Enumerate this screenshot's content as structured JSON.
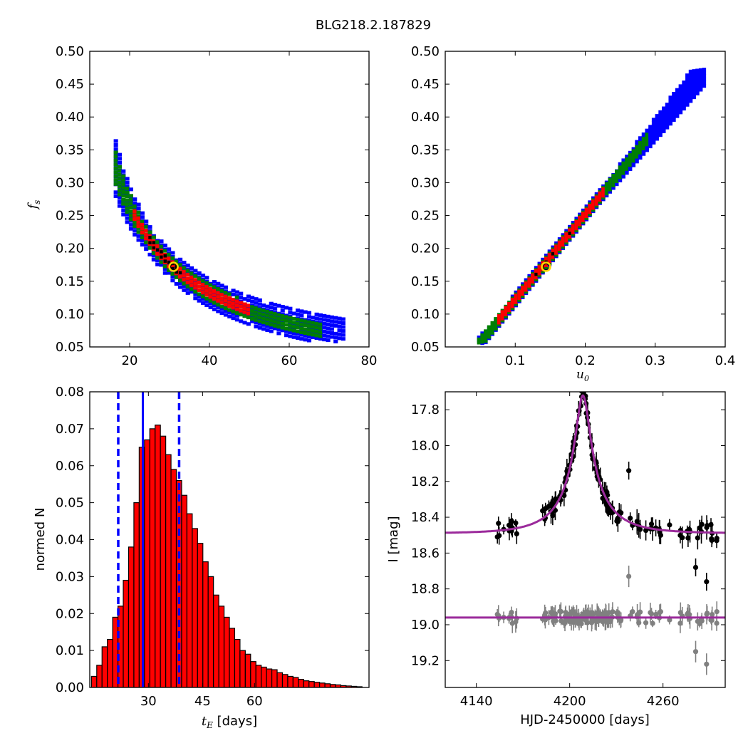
{
  "figure": {
    "title": "BLG218.2.187829"
  },
  "chart_data": [
    {
      "id": "tE_fs",
      "type": "heatmap",
      "xlim": [
        10,
        80
      ],
      "ylim": [
        0.05,
        0.5
      ],
      "xticks": [
        20,
        40,
        60,
        80
      ],
      "yticks": [
        0.05,
        0.1,
        0.15,
        0.2,
        0.25,
        0.3,
        0.35,
        0.4,
        0.45,
        0.5
      ],
      "xlabel": "",
      "ylabel_main": "f",
      "ylabel_sub": "s",
      "confidence_colors": {
        "outer": "#0000ff",
        "mid": "#008000",
        "inner": "#ff0000",
        "core": "#000000"
      },
      "best_fit": {
        "x": 31,
        "y": 0.172,
        "color": "#ffd700"
      }
    },
    {
      "id": "u0_fs",
      "type": "heatmap",
      "xlim": [
        0,
        0.4
      ],
      "ylim": [
        0.05,
        0.5
      ],
      "xticks": [
        0.1,
        0.2,
        0.3,
        0.4
      ],
      "yticks": [
        0.05,
        0.1,
        0.15,
        0.2,
        0.25,
        0.3,
        0.35,
        0.4,
        0.45,
        0.5
      ],
      "xlabel_main": "u",
      "xlabel_sub": "0",
      "ylabel": "",
      "confidence_colors": {
        "outer": "#0000ff",
        "mid": "#008000",
        "inner": "#ff0000",
        "core": "#000000"
      },
      "best_fit": {
        "x": 0.144,
        "y": 0.172,
        "color": "#ffd700"
      }
    },
    {
      "id": "tE_hist",
      "type": "bar",
      "xlim": [
        21,
        71
      ],
      "ylim": [
        0,
        0.08
      ],
      "xticks": [
        30,
        45,
        60
      ],
      "yticks": [
        0.0,
        0.01,
        0.02,
        0.03,
        0.04,
        0.05,
        0.06,
        0.07,
        0.08
      ],
      "xlabel_main": "t",
      "xlabel_sub": "E",
      "xlabel_rest": " [days]",
      "ylabel": "normed N",
      "bar_color": "#ff0000",
      "bin_width": 0.95,
      "bin_start": 21.3,
      "values": [
        0.003,
        0.006,
        0.011,
        0.013,
        0.019,
        0.022,
        0.029,
        0.038,
        0.05,
        0.065,
        0.067,
        0.07,
        0.071,
        0.068,
        0.063,
        0.059,
        0.056,
        0.052,
        0.047,
        0.043,
        0.039,
        0.034,
        0.03,
        0.025,
        0.022,
        0.019,
        0.016,
        0.013,
        0.01,
        0.009,
        0.007,
        0.006,
        0.0055,
        0.005,
        0.0048,
        0.004,
        0.0035,
        0.003,
        0.0027,
        0.0022,
        0.0018,
        0.0016,
        0.0014,
        0.0012,
        0.001,
        0.0008,
        0.0007,
        0.0005,
        0.0004,
        0.0003,
        0.0002
      ],
      "median": 30.5,
      "lower": 26.1,
      "upper": 37.0,
      "line_color": "#0000ff"
    },
    {
      "id": "lightcurve",
      "type": "scatter",
      "xlim": [
        4120,
        4300
      ],
      "ylim": [
        19.35,
        17.7
      ],
      "xticks": [
        4140,
        4200,
        4260
      ],
      "yticks": [
        17.8,
        18.0,
        18.2,
        18.4,
        18.6,
        18.8,
        19.0,
        19.2
      ],
      "xlabel": "HJD-2450000 [days]",
      "ylabel": "I [mag]",
      "model": {
        "t0": 4208.5,
        "tE": 30.5,
        "u0": 0.144,
        "base_mag": 18.49,
        "fs": 0.172,
        "color": "#9b2a9b"
      },
      "residual_level": 18.96,
      "data_color": "#000000",
      "residual_color": "#808080"
    }
  ]
}
